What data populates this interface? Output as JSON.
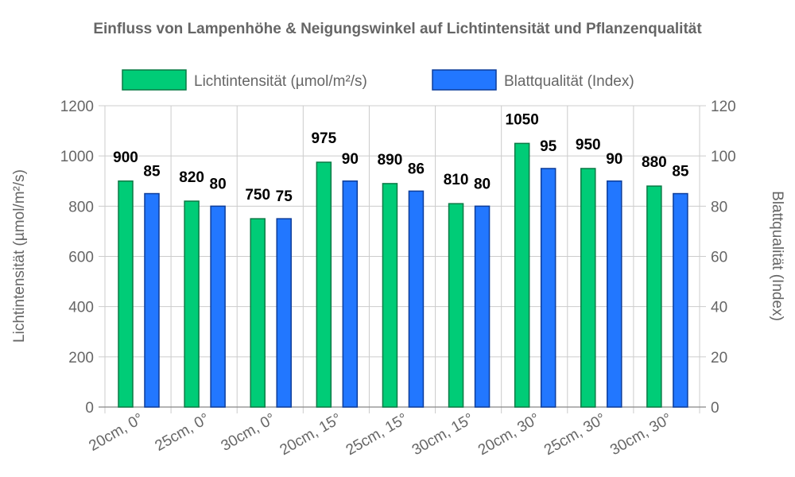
{
  "chart_data": {
    "type": "bar",
    "title": "Einfluss von Lampenhöhe & Neigungswinkel auf Lichtintensität und Pflanzenqualität",
    "categories": [
      "20cm, 0°",
      "25cm, 0°",
      "30cm, 0°",
      "20cm, 15°",
      "25cm, 15°",
      "30cm, 15°",
      "20cm, 30°",
      "25cm, 30°",
      "30cm, 30°"
    ],
    "series": [
      {
        "name": "Lichtintensität (µmol/m²/s)",
        "axis": "left",
        "color": "#00cc77",
        "border": "#0a7a45",
        "values": [
          900,
          820,
          750,
          975,
          890,
          810,
          1050,
          950,
          880
        ]
      },
      {
        "name": "Blattqualität (Index)",
        "axis": "right",
        "color": "#2277ff",
        "border": "#0d3d9a",
        "values": [
          85,
          80,
          75,
          90,
          86,
          80,
          95,
          90,
          85
        ]
      }
    ],
    "ylabel_left": "Lichtintensität (µmol/m²/s)",
    "ylabel_right": "Blattqualität (Index)",
    "ylim_left": [
      0,
      1200
    ],
    "ylim_right": [
      0,
      120
    ],
    "yticks_left": [
      "0",
      "200",
      "400",
      "600",
      "800",
      "1000",
      "1200"
    ],
    "yticks_right": [
      "0",
      "20",
      "40",
      "60",
      "80",
      "100",
      "120"
    ],
    "grid": true,
    "legend_position": "top"
  }
}
